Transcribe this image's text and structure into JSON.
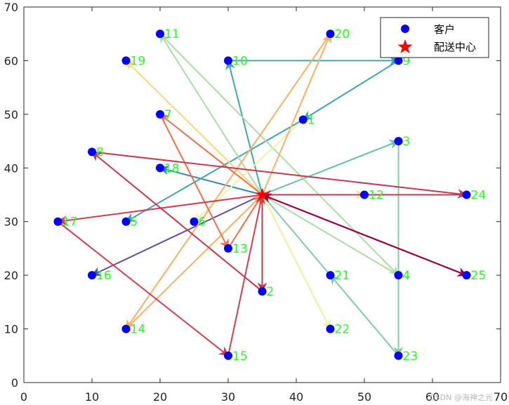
{
  "chart_data": {
    "type": "scatter",
    "xlim": [
      0,
      70
    ],
    "ylim": [
      0,
      70
    ],
    "xticks": [
      0,
      10,
      20,
      30,
      40,
      50,
      60,
      70
    ],
    "yticks": [
      0,
      10,
      20,
      30,
      40,
      50,
      60,
      70
    ],
    "grid": false,
    "legend": {
      "placement": "top-right",
      "entries": [
        {
          "label": "客户",
          "marker": "circle",
          "color": "#0000ff"
        },
        {
          "label": "配送中心",
          "marker": "star",
          "color": "#ff0000"
        }
      ]
    },
    "depot": {
      "x": 35,
      "y": 35
    },
    "customers": [
      {
        "id": "1",
        "x": 41,
        "y": 49
      },
      {
        "id": "2",
        "x": 35,
        "y": 17
      },
      {
        "id": "3",
        "x": 55,
        "y": 45
      },
      {
        "id": "4",
        "x": 55,
        "y": 20
      },
      {
        "id": "5",
        "x": 15,
        "y": 30
      },
      {
        "id": "6",
        "x": 25,
        "y": 30
      },
      {
        "id": "7",
        "x": 20,
        "y": 50
      },
      {
        "id": "8",
        "x": 10,
        "y": 43
      },
      {
        "id": "9",
        "x": 55,
        "y": 60
      },
      {
        "id": "10",
        "x": 30,
        "y": 60
      },
      {
        "id": "11",
        "x": 20,
        "y": 65
      },
      {
        "id": "12",
        "x": 50,
        "y": 35
      },
      {
        "id": "13",
        "x": 30,
        "y": 25
      },
      {
        "id": "14",
        "x": 15,
        "y": 10
      },
      {
        "id": "15",
        "x": 30,
        "y": 5
      },
      {
        "id": "16",
        "x": 10,
        "y": 20
      },
      {
        "id": "17",
        "x": 5,
        "y": 30
      },
      {
        "id": "18",
        "x": 20,
        "y": 40
      },
      {
        "id": "19",
        "x": 15,
        "y": 60
      },
      {
        "id": "20",
        "x": 45,
        "y": 65
      },
      {
        "id": "21",
        "x": 45,
        "y": 20
      },
      {
        "id": "22",
        "x": 45,
        "y": 10
      },
      {
        "id": "23",
        "x": 55,
        "y": 5
      },
      {
        "id": "24",
        "x": 65,
        "y": 35
      },
      {
        "id": "25",
        "x": 65,
        "y": 20
      }
    ],
    "routes": [
      {
        "color": "#5e4fa2",
        "path": [
          [
            35,
            35
          ],
          [
            10,
            20
          ]
        ]
      },
      {
        "color": "#3288bd",
        "path": [
          [
            35,
            35
          ],
          [
            20,
            40
          ]
        ]
      },
      {
        "color": "#3ba8b3",
        "path": [
          [
            35,
            35
          ],
          [
            30,
            60
          ],
          [
            55,
            60
          ],
          [
            41,
            49
          ],
          [
            15,
            30
          ]
        ]
      },
      {
        "color": "#66c2a5",
        "path": [
          [
            35,
            35
          ],
          [
            55,
            45
          ]
        ]
      },
      {
        "color": "#80cca3",
        "path": [
          [
            55,
            45
          ],
          [
            55,
            5
          ],
          [
            45,
            20
          ],
          [
            35,
            35
          ]
        ]
      },
      {
        "color": "#abdda4",
        "path": [
          [
            35,
            35
          ],
          [
            20,
            65
          ],
          [
            55,
            20
          ],
          [
            35,
            35
          ]
        ]
      },
      {
        "color": "#e6f598",
        "path": [
          [
            35,
            35
          ],
          [
            45,
            10
          ]
        ]
      },
      {
        "color": "#eef7a0",
        "path": [
          [
            41,
            49
          ],
          [
            25,
            30
          ]
        ]
      },
      {
        "color": "#fee08b",
        "path": [
          [
            35,
            35
          ],
          [
            50,
            35
          ]
        ]
      },
      {
        "color": "#fed57c",
        "path": [
          [
            35,
            35
          ],
          [
            15,
            60
          ]
        ]
      },
      {
        "color": "#fdae61",
        "path": [
          [
            35,
            35
          ],
          [
            45,
            65
          ],
          [
            15,
            10
          ],
          [
            35,
            35
          ]
        ]
      },
      {
        "color": "#f46d43",
        "path": [
          [
            35,
            35
          ],
          [
            20,
            50
          ],
          [
            30,
            25
          ],
          [
            35,
            35
          ]
        ]
      },
      {
        "color": "#d53e4f",
        "path": [
          [
            35,
            35
          ],
          [
            5,
            30
          ],
          [
            30,
            5
          ],
          [
            35,
            35
          ]
        ]
      },
      {
        "color": "#c8384e",
        "path": [
          [
            35,
            35
          ],
          [
            35,
            17
          ],
          [
            10,
            43
          ],
          [
            65,
            35
          ],
          [
            35,
            35
          ]
        ]
      },
      {
        "color": "#9e0142",
        "path": [
          [
            35,
            35
          ],
          [
            65,
            20
          ],
          [
            35,
            35
          ]
        ]
      }
    ]
  },
  "watermark": "CSDN @海神之光"
}
